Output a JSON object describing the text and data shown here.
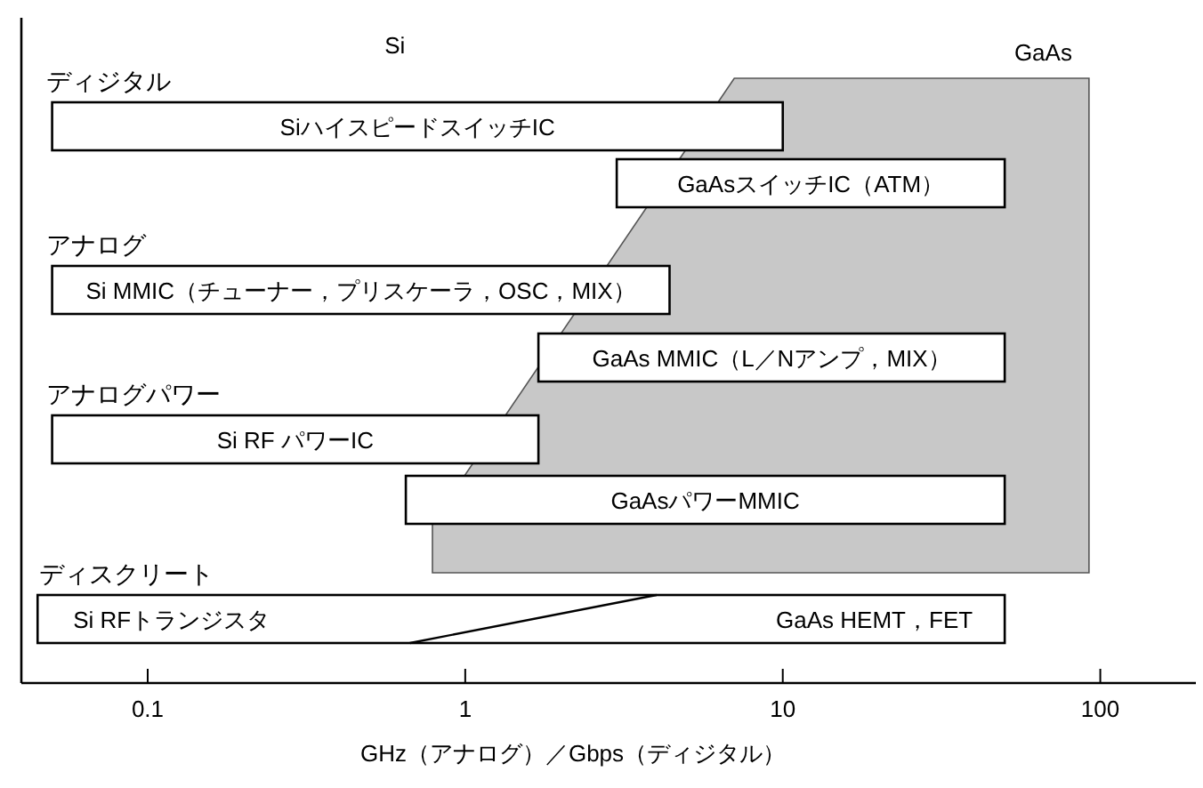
{
  "chart_data": {
    "type": "bar",
    "orientation": "horizontal",
    "log": "x",
    "xlabel": "GHz（アナログ）／Gbps（ディジタル）",
    "categories": [
      "SiハイスピードスイッチIC",
      "GaAsスイッチIC（ATM）",
      "Si MMIC（チューナー，プリスケーラ，OSC，MIX）",
      "GaAs MMIC（L／Nアンプ，MIX）",
      "Si RF パワーIC",
      "GaAsパワーMMIC",
      "Si RFトランジスタ"
    ],
    "base": [
      0.05,
      3,
      0.05,
      1.7,
      0.05,
      0.65,
      0.045
    ],
    "values": [
      9.95,
      47,
      4.35,
      48.3,
      1.65,
      49.35,
      49.955
    ],
    "color": "#ffffff",
    "xlim": [
      0.04,
      200
    ],
    "xticks": [
      0.1,
      1,
      10,
      100
    ],
    "grid": false,
    "annotations": [
      "ディジタル",
      "アナログ",
      "アナログパワー",
      "ディスクリート",
      "Si",
      "GaAs",
      "GaAs HEMT，FET"
    ]
  }
}
